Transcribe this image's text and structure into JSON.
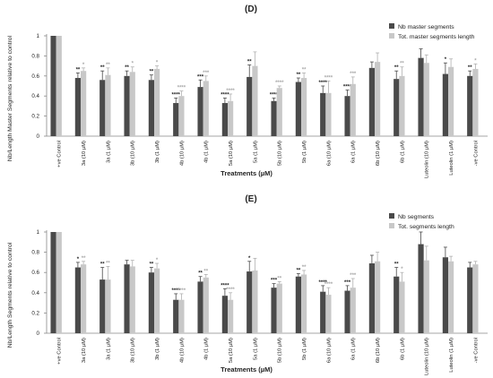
{
  "chart_data": [
    {
      "type": "bar",
      "panel": "(D)",
      "xlabel": "Treatments (µM)",
      "ylabel": "Nb/Length Master Segments relative to control",
      "ylim": [
        0,
        1
      ],
      "yticks": [
        "0",
        "0.2",
        "0.4",
        "0.6",
        "0.8",
        "1"
      ],
      "grid": false,
      "legend_position": "top-right",
      "categories": [
        "+ve Control",
        "3a (10 µM)",
        "3a (1 µM)",
        "3b (10 µM)",
        "3b (1 µM)",
        "4b (10 µM)",
        "4b (1 µM)",
        "5a (10 µM)",
        "5a (1 µM)",
        "5b (10 µM)",
        "5b (1 µM)",
        "6a (10 µM)",
        "6a (1 µM)",
        "6b (10 µM)",
        "6b (1 µM)",
        "Luteolin (10 µM)",
        "Luteolin (1 µM)",
        "-ve Control"
      ],
      "series": [
        {
          "name": "Nb master segments",
          "color": "#4a4a4a",
          "values": [
            1.0,
            0.58,
            0.56,
            0.6,
            0.56,
            0.33,
            0.49,
            0.33,
            0.59,
            0.35,
            0.54,
            0.43,
            0.4,
            0.68,
            0.57,
            0.78,
            0.62,
            0.6
          ],
          "errors": [
            0,
            0.05,
            0.09,
            0.05,
            0.05,
            0.05,
            0.07,
            0.05,
            0.12,
            0.03,
            0.04,
            0.07,
            0.06,
            0.06,
            0.08,
            0.09,
            0.11,
            0.05
          ],
          "sig": [
            "",
            "**",
            "**",
            "**",
            "**",
            "****",
            "***",
            "****",
            "**",
            "****",
            "**",
            "****",
            "****",
            "",
            "**",
            "",
            "*",
            "**"
          ]
        },
        {
          "name": "Tot. master segments length",
          "color": "#c8c8c8",
          "values": [
            1.0,
            0.65,
            0.61,
            0.64,
            0.67,
            0.4,
            0.55,
            0.35,
            0.7,
            0.48,
            0.58,
            0.43,
            0.52,
            0.74,
            0.6,
            0.73,
            0.69,
            0.67
          ],
          "errors": [
            0,
            0.03,
            0.07,
            0.05,
            0.03,
            0.05,
            0.05,
            0.07,
            0.14,
            0.02,
            0.05,
            0.12,
            0.07,
            0.09,
            0.09,
            0.08,
            0.08,
            0.05
          ],
          "sig": [
            "",
            "*",
            "**",
            "*",
            "*",
            "****",
            "***",
            "****",
            "",
            "****",
            "**",
            "****",
            "***",
            "",
            "**",
            "",
            "",
            "*"
          ]
        }
      ]
    },
    {
      "type": "bar",
      "panel": "(E)",
      "xlabel": "Treatments (µM)",
      "ylabel": "Nb/Length Segments relative to control",
      "ylim": [
        0,
        1
      ],
      "yticks": [
        "0",
        "0.2",
        "0.4",
        "0.6",
        "0.8",
        "1"
      ],
      "grid": false,
      "legend_position": "top-right",
      "categories": [
        "+ve Control",
        "3a (10 µM)",
        "3a (1 µM)",
        "3b (10 µM)",
        "3b (1 µM)",
        "4b (10 µM)",
        "4b (1 µM)",
        "5a (10 µM)",
        "5a (1 µM)",
        "5b (10 µM)",
        "5b (1 µM)",
        "6a (10 µM)",
        "6a (1 µM)",
        "6b (10 µM)",
        "6b (1 µM)",
        "Luteolin (10 µM)",
        "Luteolin (1 µM)",
        "-ve Control"
      ],
      "series": [
        {
          "name": "Nb segments",
          "color": "#4a4a4a",
          "values": [
            1.0,
            0.65,
            0.53,
            0.68,
            0.6,
            0.33,
            0.51,
            0.37,
            0.61,
            0.45,
            0.56,
            0.41,
            0.42,
            0.69,
            0.56,
            0.88,
            0.75,
            0.65
          ],
          "errors": [
            0,
            0.05,
            0.12,
            0.04,
            0.05,
            0.06,
            0.05,
            0.07,
            0.1,
            0.04,
            0.03,
            0.06,
            0.05,
            0.08,
            0.09,
            0.12,
            0.1,
            0.05
          ],
          "sig": [
            "",
            "*",
            "**",
            "",
            "**",
            "****",
            "**",
            "****",
            "*",
            "***",
            "**",
            "****",
            "***",
            "",
            "**",
            "",
            "",
            ""
          ]
        },
        {
          "name": "Tot. segments length",
          "color": "#c8c8c8",
          "values": [
            1.0,
            0.68,
            0.53,
            0.66,
            0.64,
            0.33,
            0.55,
            0.33,
            0.62,
            0.49,
            0.58,
            0.38,
            0.45,
            0.71,
            0.51,
            0.72,
            0.71,
            0.68
          ],
          "errors": [
            0,
            0.03,
            0.13,
            0.06,
            0.05,
            0.06,
            0.03,
            0.07,
            0.12,
            0.02,
            0.04,
            0.07,
            0.09,
            0.09,
            0.09,
            0.14,
            0.05,
            0.03
          ],
          "sig": [
            "",
            "**",
            "**",
            "",
            "*",
            "****",
            "**",
            "****",
            "",
            "**",
            "**",
            "****",
            "***",
            "",
            "*",
            "",
            "",
            ""
          ]
        }
      ]
    }
  ]
}
